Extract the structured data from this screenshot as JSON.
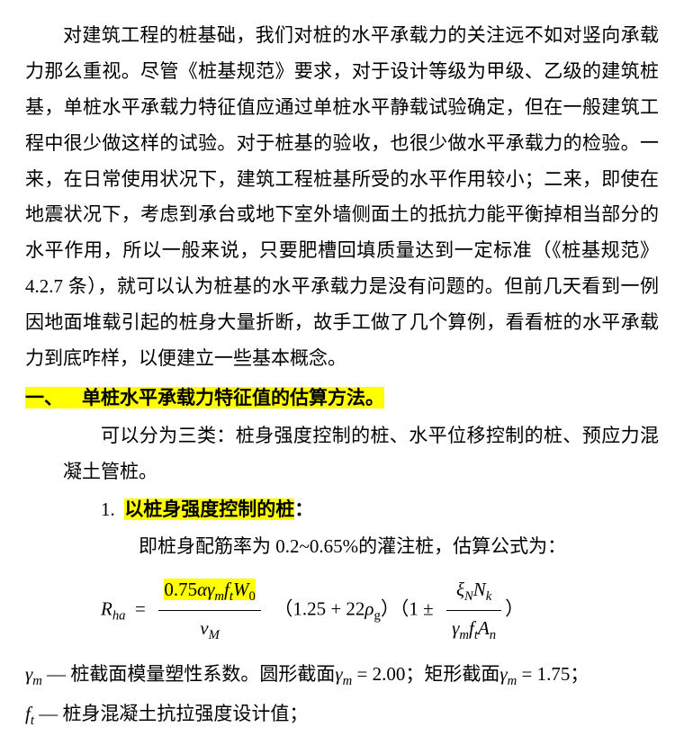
{
  "intro": "对建筑工程的桩基础，我们对桩的水平承载力的关注远不如对竖向承载力那么重视。尽管《桩基规范》要求，对于设计等级为甲级、乙级的建筑桩基，单桩水平承载力特征值应通过单桩水平静载试验确定，但在一般建筑工程中很少做这样的试验。对于桩基的验收，也很少做水平承载力的检验。一来，在日常使用状况下，建筑工程桩基所受的水平作用较小；二来，即使在地震状况下，考虑到承台或地下室外墙侧面土的抵抗力能平衡掉相当部分的水平作用，所以一般来说，只要肥槽回填质量达到一定标准（《桩基规范》4.2.7 条），就可以认为桩基的水平承载力是没有问题的。但前几天看到一例因地面堆载引起的桩身大量折断，故手工做了几个算例，看看桩的水平承载力到底咋样，以便建立一些基本概念。",
  "section1_num": "一、",
  "section1_title": "单桩水平承载力特征值的估算方法。",
  "section1_intro": "可以分为三类：桩身强度控制的桩、水平位移控制的桩、预应力混凝土管桩。",
  "item1_num": "1.",
  "item1_title": "以桩身强度控制的桩",
  "item1_colon": "：",
  "item1_desc": "即桩身配筋率为 0.2~0.65%的灌注桩，估算公式为：",
  "formula": {
    "lhs_sym": "R",
    "lhs_sub": "ha",
    "frac1_num_coef": "0.75",
    "frac1_num_rest": "αγ",
    "frac1_num_m": "m",
    "frac1_num_f": "f",
    "frac1_num_t": "t",
    "frac1_num_W": "W",
    "frac1_num_0": "0",
    "frac1_den_sym": "ν",
    "frac1_den_sub": "M",
    "mid_open": "（",
    "mid_a": "1.25 + 22",
    "mid_rho": "ρ",
    "mid_g": "g",
    "mid_close": "）（",
    "last_a": "1 ±",
    "frac2_num_xi": "ξ",
    "frac2_num_N": "N",
    "frac2_num_Nk": "N",
    "frac2_num_k": "k",
    "frac2_den_gm": "γ",
    "frac2_den_m": "m",
    "frac2_den_f": "f",
    "frac2_den_t": "t",
    "frac2_den_A": "A",
    "frac2_den_n": "n",
    "last_close": "）"
  },
  "note1_sym": "γ",
  "note1_sub": "m",
  "note1_text": " — 桩截面模量塑性系数。圆形截面",
  "note1_sym2": "γ",
  "note1_sub2": "m",
  "note1_eq1": " = 2.00；矩形截面",
  "note1_sym3": "γ",
  "note1_sub3": "m",
  "note1_eq2": " = 1.75；",
  "note2_sym": "f",
  "note2_sub": "t",
  "note2_text": " — 桩身混凝土抗拉强度设计值；",
  "colors": {
    "highlight": "#ffff00",
    "text": "#000000",
    "background": "#ffffff"
  }
}
